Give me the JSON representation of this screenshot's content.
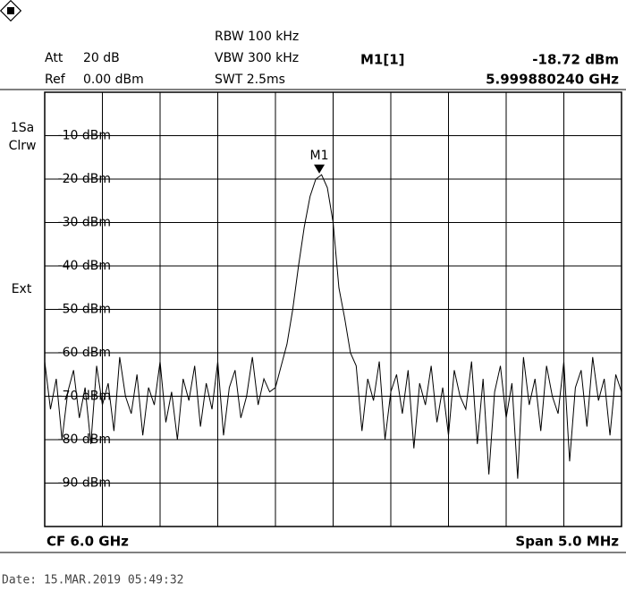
{
  "chart_data": {
    "type": "line",
    "header": {
      "att_label": "Att",
      "att": "20 dB",
      "ref_label": "Ref",
      "ref": "0.00 dBm",
      "rbw": "RBW 100 kHz",
      "vbw": "VBW 300 kHz",
      "swt": "SWT 2.5ms"
    },
    "side": {
      "sample": "1Sa",
      "mode": "Clrw",
      "trigger": "Ext"
    },
    "footer": {
      "center": "CF 6.0 GHz",
      "span": "Span 5.0 MHz"
    },
    "date": "Date: 15.MAR.2019  05:49:32",
    "marker": {
      "name": "M1",
      "readout": "M1[1]",
      "value": -18.72,
      "value_label": "-18.72 dBm",
      "freq": 5.99988024,
      "freq_label": "5.999880240 GHz"
    },
    "xlim": [
      5.9975,
      6.0025
    ],
    "xticks": [
      5.9975,
      5.998,
      5.9985,
      5.999,
      5.9995,
      6.0,
      6.0005,
      6.001,
      6.0015,
      6.002,
      6.0025
    ],
    "ylim": [
      -100,
      0
    ],
    "yticks": [
      {
        "value": -10,
        "label": "-10 dBm"
      },
      {
        "value": -20,
        "label": "-20 dBm"
      },
      {
        "value": -30,
        "label": "-30 dBm"
      },
      {
        "value": -40,
        "label": "-40 dBm"
      },
      {
        "value": -50,
        "label": "-50 dBm"
      },
      {
        "value": -60,
        "label": "-60 dBm"
      },
      {
        "value": -70,
        "label": "-70 dBm"
      },
      {
        "value": -80,
        "label": "-80 dBm"
      },
      {
        "value": -90,
        "label": "-90 dBm"
      }
    ],
    "grid": true,
    "x": [
      5.9975,
      5.99755,
      5.9976,
      5.99765,
      5.9977,
      5.99775,
      5.9978,
      5.99785,
      5.9979,
      5.99795,
      5.998,
      5.99805,
      5.9981,
      5.99815,
      5.9982,
      5.99825,
      5.9983,
      5.99835,
      5.9984,
      5.99845,
      5.9985,
      5.99855,
      5.9986,
      5.99865,
      5.9987,
      5.99875,
      5.9988,
      5.99885,
      5.9989,
      5.99895,
      5.999,
      5.99905,
      5.9991,
      5.99915,
      5.9992,
      5.99925,
      5.9993,
      5.99935,
      5.9994,
      5.99945,
      5.9995,
      5.99955,
      5.9996,
      5.99965,
      5.9997,
      5.99975,
      5.9998,
      5.99985,
      5.9999,
      5.99995,
      6.0,
      6.00005,
      6.0001,
      6.00015,
      6.0002,
      6.00025,
      6.0003,
      6.00035,
      6.0004,
      6.00045,
      6.0005,
      6.00055,
      6.0006,
      6.00065,
      6.0007,
      6.00075,
      6.0008,
      6.00085,
      6.0009,
      6.00095,
      6.001,
      6.00105,
      6.0011,
      6.00115,
      6.0012,
      6.00125,
      6.0013,
      6.00135,
      6.0014,
      6.00145,
      6.0015,
      6.00155,
      6.0016,
      6.00165,
      6.0017,
      6.00175,
      6.0018,
      6.00185,
      6.0019,
      6.00195,
      6.002,
      6.00205,
      6.0021,
      6.00215,
      6.0022,
      6.00225,
      6.0023,
      6.00235,
      6.0024,
      6.00245,
      6.0025
    ],
    "values": [
      -62,
      -73,
      -66,
      -80,
      -69,
      -64,
      -75,
      -68,
      -81,
      -63,
      -72,
      -67,
      -78,
      -61,
      -70,
      -74,
      -65,
      -79,
      -68,
      -72,
      -62,
      -76,
      -69,
      -80,
      -66,
      -71,
      -63,
      -77,
      -67,
      -73,
      -62,
      -79,
      -68,
      -64,
      -75,
      -70,
      -61,
      -72,
      -66,
      -69,
      -68,
      -63,
      -58,
      -50,
      -40,
      -31,
      -24,
      -20,
      -19,
      -22,
      -30,
      -45,
      -52,
      -60,
      -63,
      -78,
      -66,
      -71,
      -62,
      -80,
      -69,
      -65,
      -74,
      -64,
      -82,
      -67,
      -72,
      -63,
      -76,
      -68,
      -79,
      -64,
      -70,
      -73,
      -62,
      -81,
      -66,
      -88,
      -69,
      -63,
      -75,
      -67,
      -89,
      -61,
      -72,
      -66,
      -78,
      -63,
      -70,
      -74,
      -62,
      -85,
      -68,
      -64,
      -77,
      -61,
      -71,
      -66,
      -79,
      -65,
      -69
    ],
    "color": "#000000"
  }
}
